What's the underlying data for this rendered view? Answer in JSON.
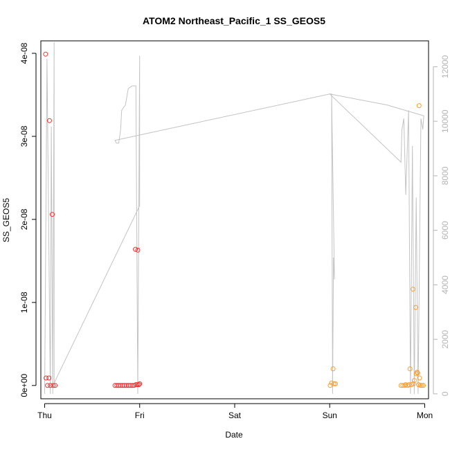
{
  "chart_data": {
    "type": "scatter",
    "title": "ATOM2 Northeast_Pacific_1 SS_GEOS5",
    "xlabel": "Date",
    "ylabel": "SS_GEOS5",
    "x_unit": "days since Thursday 00:00",
    "xlim": [
      -0.04,
      4.04
    ],
    "ylim": [
      -1.6e-09,
      4.15e-08
    ],
    "y2lim": [
      -180,
      12950
    ],
    "x_ticks": [
      {
        "value": 0,
        "label": "Thu"
      },
      {
        "value": 1,
        "label": "Fri"
      },
      {
        "value": 2,
        "label": "Sat"
      },
      {
        "value": 3,
        "label": "Sun"
      },
      {
        "value": 4,
        "label": "Mon"
      }
    ],
    "y_ticks": [
      {
        "value": 0,
        "label": "0e+00"
      },
      {
        "value": 1e-08,
        "label": "1e-08"
      },
      {
        "value": 2e-08,
        "label": "2e-08"
      },
      {
        "value": 3e-08,
        "label": "3e-08"
      },
      {
        "value": 4e-08,
        "label": "4e-08"
      }
    ],
    "y2_ticks": [
      {
        "value": 0,
        "label": "0"
      },
      {
        "value": 2000,
        "label": "2000"
      },
      {
        "value": 4000,
        "label": "4000"
      },
      {
        "value": 6000,
        "label": "6000"
      },
      {
        "value": 8000,
        "label": "8000"
      },
      {
        "value": 10000,
        "label": "10000"
      },
      {
        "value": 12000,
        "label": "12000"
      }
    ],
    "colors": {
      "series_red": "#ff2a2a",
      "series_orange": "#ff9d2a",
      "altitude_line": "#c3c3c3",
      "axis": "#000000",
      "axis_right": "#b4b4b4"
    },
    "series": [
      {
        "color_key": "series_red",
        "marker": "circle-open",
        "points": [
          [
            0.01,
            3.99e-08
          ],
          [
            0.015,
            9e-10
          ],
          [
            0.03,
            0.0
          ],
          [
            0.045,
            9e-10
          ],
          [
            0.05,
            3.19e-08
          ],
          [
            0.06,
            0.0
          ],
          [
            0.08,
            2.06e-08
          ],
          [
            0.09,
            0.0
          ],
          [
            0.11,
            0.0
          ],
          [
            0.74,
            0.0
          ],
          [
            0.76,
            0.0
          ],
          [
            0.78,
            0.0
          ],
          [
            0.8,
            0.0
          ],
          [
            0.82,
            0.0
          ],
          [
            0.84,
            0.0
          ],
          [
            0.86,
            0.0
          ],
          [
            0.88,
            0.0
          ],
          [
            0.9,
            0.0
          ],
          [
            0.92,
            0.0
          ],
          [
            0.94,
            0.0
          ],
          [
            0.955,
            1.64e-08
          ],
          [
            0.96,
            1e-10
          ],
          [
            0.975,
            1e-10
          ],
          [
            0.98,
            1.63e-08
          ],
          [
            0.99,
            1e-10
          ],
          [
            1.0,
            2e-10
          ]
        ]
      },
      {
        "color_key": "series_orange",
        "marker": "circle-open",
        "points": [
          [
            3.005,
            0.0
          ],
          [
            3.02,
            3e-10
          ],
          [
            3.035,
            2e-09
          ],
          [
            3.045,
            2e-10
          ],
          [
            3.06,
            2e-10
          ],
          [
            3.75,
            0.0
          ],
          [
            3.77,
            0.0
          ],
          [
            3.79,
            0.0
          ],
          [
            3.8,
            1e-10
          ],
          [
            3.82,
            0.0
          ],
          [
            3.835,
            1e-10
          ],
          [
            3.845,
            2e-09
          ],
          [
            3.86,
            1e-10
          ],
          [
            3.875,
            1.16e-08
          ],
          [
            3.88,
            2e-10
          ],
          [
            3.89,
            6e-10
          ],
          [
            3.905,
            9.4e-09
          ],
          [
            3.91,
            1.4e-09
          ],
          [
            3.92,
            1.6e-09
          ],
          [
            3.925,
            1.5e-09
          ],
          [
            3.935,
            1e-10
          ],
          [
            3.94,
            3.37e-08
          ],
          [
            3.945,
            9e-10
          ],
          [
            3.955,
            0.0
          ],
          [
            3.97,
            0.0
          ],
          [
            3.985,
            0.0
          ]
        ]
      }
    ],
    "altitude_line": {
      "color_key": "altitude_line",
      "axis": "right",
      "points": [
        [
          0.0,
          0
        ],
        [
          0.025,
          12300
        ],
        [
          0.06,
          0
        ],
        [
          0.07,
          9800
        ],
        [
          0.085,
          0
        ],
        [
          0.1,
          12900
        ],
        [
          0.1,
          400
        ],
        [
          1.0,
          6900
        ],
        [
          1.0,
          12400
        ],
        [
          0.98,
          0
        ],
        [
          0.96,
          11300
        ],
        [
          0.94,
          11300
        ],
        [
          0.92,
          11300
        ],
        [
          0.88,
          11200
        ],
        [
          0.85,
          10600
        ],
        [
          0.83,
          10500
        ],
        [
          0.81,
          10400
        ],
        [
          0.8,
          9700
        ],
        [
          0.78,
          9200
        ],
        [
          0.755,
          9200
        ],
        [
          0.74,
          9300
        ],
        [
          3.0,
          11000
        ],
        [
          3.02,
          11000
        ],
        [
          3.03,
          0
        ],
        [
          3.04,
          5000
        ],
        [
          3.05,
          4200
        ],
        [
          3.05,
          4200
        ],
        [
          3.02,
          11000
        ],
        [
          3.0,
          11000
        ],
        [
          3.75,
          8500
        ],
        [
          3.76,
          9700
        ],
        [
          3.78,
          10100
        ],
        [
          3.8,
          7300
        ],
        [
          3.83,
          10400
        ],
        [
          3.85,
          0
        ],
        [
          3.87,
          9100
        ],
        [
          3.89,
          0
        ],
        [
          3.91,
          7200
        ],
        [
          3.93,
          0
        ],
        [
          3.96,
          10100
        ],
        [
          3.98,
          9700
        ],
        [
          3.99,
          10200
        ],
        [
          3.6,
          10600
        ],
        [
          3.0,
          11000
        ]
      ]
    }
  }
}
